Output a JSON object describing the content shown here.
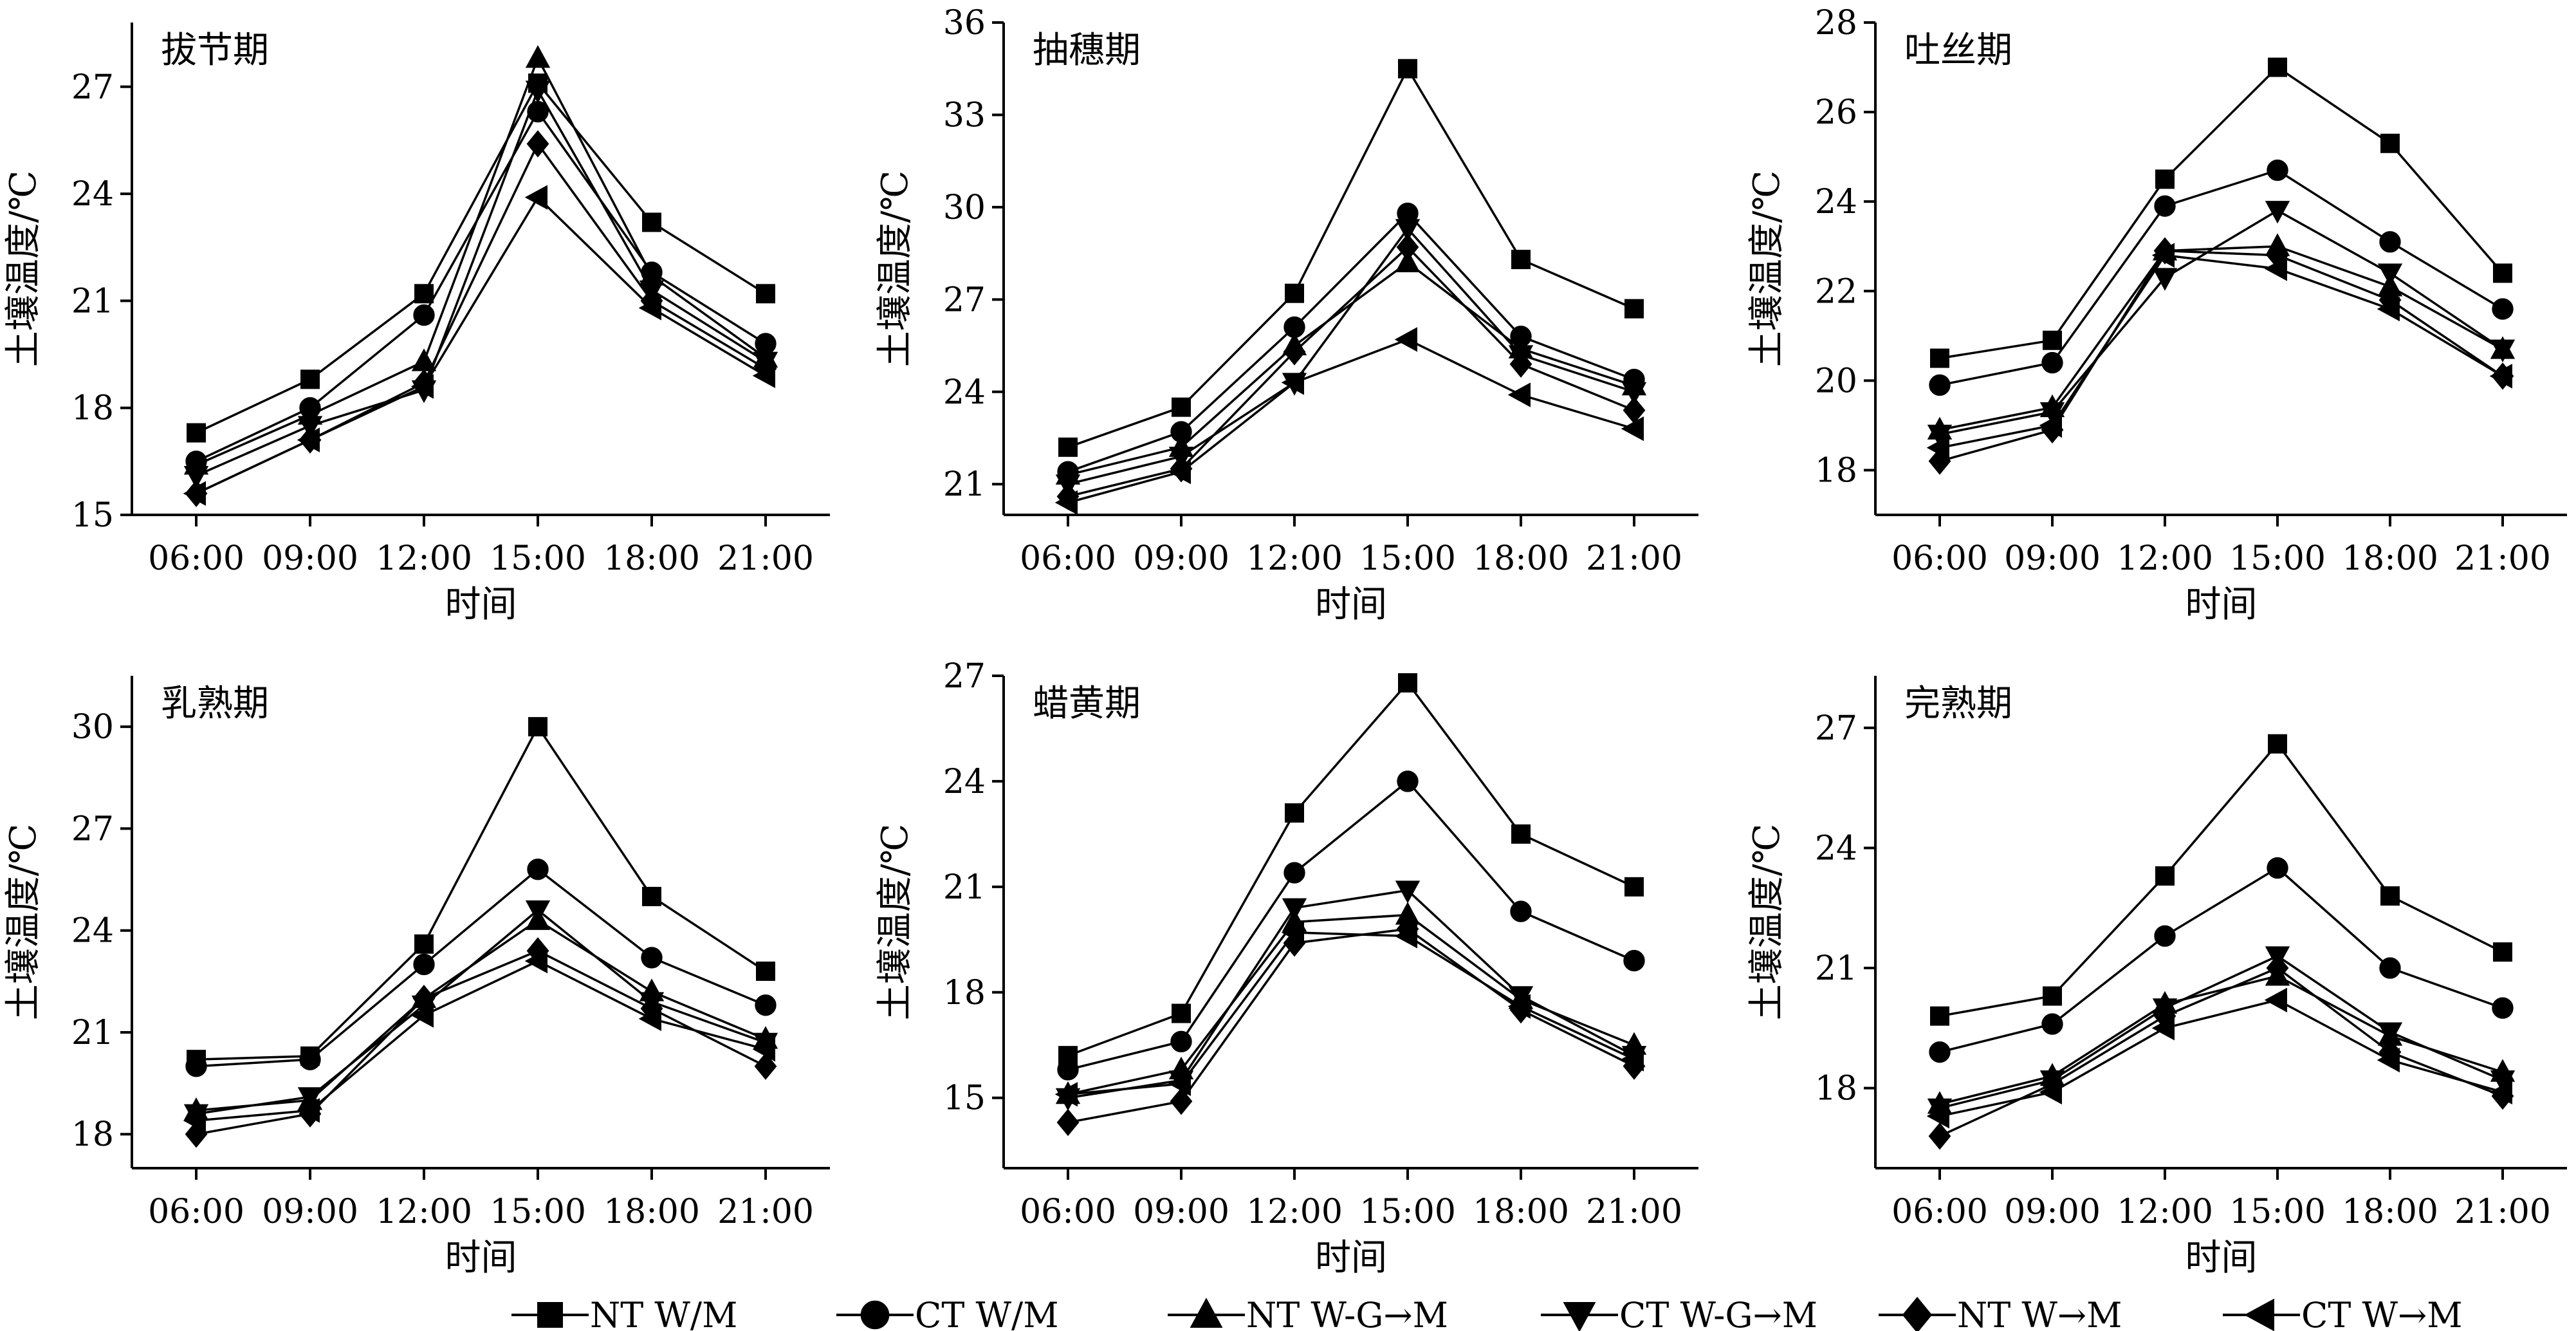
{
  "legend": [
    {
      "name": "NT W/M",
      "marker": "square"
    },
    {
      "name": "CT W/M",
      "marker": "circle"
    },
    {
      "name": "NT W-G→M",
      "marker": "triangle-up"
    },
    {
      "name": "CT W-G→M",
      "marker": "triangle-down"
    },
    {
      "name": "NT W→M",
      "marker": "diamond"
    },
    {
      "name": "CT W→M",
      "marker": "triangle-left"
    }
  ],
  "chart_data": [
    {
      "type": "line",
      "title": "拔节期",
      "xlabel": "时间",
      "ylabel": "土壤温度/℃",
      "categories": [
        "06:00",
        "09:00",
        "12:00",
        "15:00",
        "18:00",
        "21:00"
      ],
      "ylim": [
        15,
        28.8
      ],
      "yticks": [
        15,
        18,
        21,
        24,
        27
      ],
      "grid": false,
      "series": [
        {
          "name": "NT W/M",
          "values": [
            17.3,
            18.8,
            21.2,
            27.1,
            23.2,
            21.2
          ]
        },
        {
          "name": "CT W/M",
          "values": [
            16.5,
            18.0,
            20.6,
            26.3,
            21.8,
            19.8
          ]
        },
        {
          "name": "NT W-G→M",
          "values": [
            16.4,
            17.8,
            19.3,
            27.8,
            21.7,
            19.4
          ]
        },
        {
          "name": "CT W-G→M",
          "values": [
            16.1,
            17.5,
            18.5,
            26.9,
            21.3,
            19.3
          ]
        },
        {
          "name": "NT W→M",
          "values": [
            15.6,
            17.1,
            18.7,
            25.4,
            21.0,
            19.1
          ]
        },
        {
          "name": "CT W→M",
          "values": [
            15.6,
            17.1,
            18.6,
            23.9,
            20.8,
            18.9
          ]
        }
      ]
    },
    {
      "type": "line",
      "title": "抽穗期",
      "xlabel": "时间",
      "ylabel": "土壤温度/℃",
      "categories": [
        "06:00",
        "09:00",
        "12:00",
        "15:00",
        "18:00",
        "21:00"
      ],
      "ylim": [
        20,
        36
      ],
      "yticks": [
        21,
        24,
        27,
        30,
        33,
        36
      ],
      "grid": false,
      "series": [
        {
          "name": "NT W/M",
          "values": [
            22.2,
            23.5,
            27.2,
            34.5,
            28.3,
            26.7
          ]
        },
        {
          "name": "CT W/M",
          "values": [
            21.4,
            22.7,
            26.1,
            29.8,
            25.8,
            24.4
          ]
        },
        {
          "name": "NT W-G→M",
          "values": [
            21.3,
            22.2,
            25.5,
            28.2,
            25.4,
            24.2
          ]
        },
        {
          "name": "CT W-G→M",
          "values": [
            21.0,
            21.9,
            24.3,
            29.3,
            25.2,
            24.0
          ]
        },
        {
          "name": "NT W→M",
          "values": [
            20.6,
            21.5,
            25.3,
            28.7,
            24.9,
            23.4
          ]
        },
        {
          "name": "CT W→M",
          "values": [
            20.4,
            21.4,
            24.3,
            25.7,
            23.9,
            22.8
          ]
        }
      ]
    },
    {
      "type": "line",
      "title": "吐丝期",
      "xlabel": "时间",
      "ylabel": "土壤温度/℃",
      "categories": [
        "06:00",
        "09:00",
        "12:00",
        "15:00",
        "18:00",
        "21:00"
      ],
      "ylim": [
        17,
        28
      ],
      "yticks": [
        18,
        20,
        22,
        24,
        26,
        28
      ],
      "grid": false,
      "series": [
        {
          "name": "NT W/M",
          "values": [
            20.5,
            20.9,
            24.5,
            27.0,
            25.3,
            22.4
          ]
        },
        {
          "name": "CT W/M",
          "values": [
            19.9,
            20.4,
            23.9,
            24.7,
            23.1,
            21.6
          ]
        },
        {
          "name": "NT W-G→M",
          "values": [
            18.9,
            19.4,
            22.9,
            23.0,
            22.1,
            20.7
          ]
        },
        {
          "name": "CT W-G→M",
          "values": [
            18.8,
            19.3,
            22.3,
            23.8,
            22.4,
            20.7
          ]
        },
        {
          "name": "NT W→M",
          "values": [
            18.2,
            18.9,
            22.9,
            22.8,
            21.8,
            20.1
          ]
        },
        {
          "name": "CT W→M",
          "values": [
            18.5,
            19.0,
            22.8,
            22.5,
            21.6,
            20.1
          ]
        }
      ]
    },
    {
      "type": "line",
      "title": "乳熟期",
      "xlabel": "时间",
      "ylabel": "土壤温度/℃",
      "categories": [
        "06:00",
        "09:00",
        "12:00",
        "15:00",
        "18:00",
        "21:00"
      ],
      "ylim": [
        17,
        31.5
      ],
      "yticks": [
        18,
        21,
        24,
        27,
        30
      ],
      "grid": false,
      "series": [
        {
          "name": "NT W/M",
          "values": [
            20.2,
            20.3,
            23.6,
            30.0,
            25.0,
            22.8
          ]
        },
        {
          "name": "CT W/M",
          "values": [
            20.0,
            20.2,
            23.0,
            25.8,
            23.2,
            21.8
          ]
        },
        {
          "name": "NT W-G→M",
          "values": [
            18.7,
            19.0,
            22.0,
            24.3,
            22.2,
            20.8
          ]
        },
        {
          "name": "CT W-G→M",
          "values": [
            18.6,
            19.1,
            21.8,
            24.6,
            21.9,
            20.7
          ]
        },
        {
          "name": "NT W→M",
          "values": [
            18.0,
            18.6,
            22.0,
            23.4,
            21.7,
            20.0
          ]
        },
        {
          "name": "CT W→M",
          "values": [
            18.4,
            18.7,
            21.5,
            23.1,
            21.4,
            20.5
          ]
        }
      ]
    },
    {
      "type": "line",
      "title": "蜡黄期",
      "xlabel": "时间",
      "ylabel": "土壤温度/℃",
      "categories": [
        "06:00",
        "09:00",
        "12:00",
        "15:00",
        "18:00",
        "21:00"
      ],
      "ylim": [
        13,
        27
      ],
      "yticks": [
        15,
        18,
        21,
        24,
        27
      ],
      "grid": false,
      "series": [
        {
          "name": "NT W/M",
          "values": [
            16.2,
            17.4,
            23.1,
            26.8,
            22.5,
            21.0
          ]
        },
        {
          "name": "CT W/M",
          "values": [
            15.8,
            16.6,
            21.4,
            24.0,
            20.3,
            18.9
          ]
        },
        {
          "name": "NT W-G→M",
          "values": [
            15.1,
            15.8,
            20.0,
            20.2,
            17.8,
            16.5
          ]
        },
        {
          "name": "CT W-G→M",
          "values": [
            15.0,
            15.5,
            20.4,
            20.9,
            17.9,
            16.2
          ]
        },
        {
          "name": "NT W→M",
          "values": [
            14.3,
            14.9,
            19.4,
            19.8,
            17.5,
            15.9
          ]
        },
        {
          "name": "CT W→M",
          "values": [
            15.1,
            15.4,
            19.7,
            19.6,
            17.6,
            16.1
          ]
        }
      ]
    },
    {
      "type": "line",
      "title": "完熟期",
      "xlabel": "时间",
      "ylabel": "土壤温度/℃",
      "categories": [
        "06:00",
        "09:00",
        "12:00",
        "15:00",
        "18:00",
        "21:00"
      ],
      "ylim": [
        16,
        28.3
      ],
      "yticks": [
        18,
        21,
        24,
        27
      ],
      "grid": false,
      "series": [
        {
          "name": "NT W/M",
          "values": [
            19.8,
            20.3,
            23.3,
            26.6,
            22.8,
            21.4
          ]
        },
        {
          "name": "CT W/M",
          "values": [
            18.9,
            19.6,
            21.8,
            23.5,
            21.0,
            20.0
          ]
        },
        {
          "name": "NT W-G→M",
          "values": [
            17.6,
            18.3,
            20.1,
            20.8,
            19.3,
            18.4
          ]
        },
        {
          "name": "CT W-G→M",
          "values": [
            17.5,
            18.2,
            20.0,
            21.3,
            19.4,
            18.2
          ]
        },
        {
          "name": "NT W→M",
          "values": [
            16.8,
            18.1,
            19.8,
            21.0,
            18.9,
            17.8
          ]
        },
        {
          "name": "CT W→M",
          "values": [
            17.3,
            17.9,
            19.5,
            20.2,
            18.7,
            17.9
          ]
        }
      ]
    }
  ]
}
